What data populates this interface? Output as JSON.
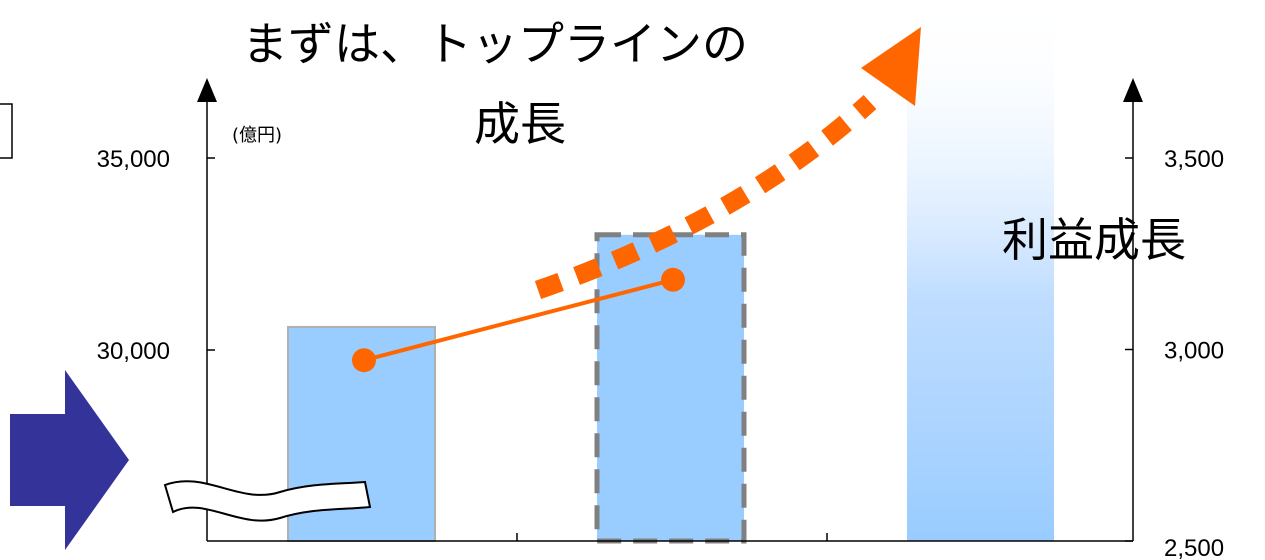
{
  "chart_data": {
    "type": "bar",
    "categories": [
      "",
      "",
      ""
    ],
    "bars": [
      30600,
      33000,
      37500
    ],
    "bar_styles": [
      "solid",
      "dashed-outline",
      "gradient-fade"
    ],
    "line_series": {
      "axis": "right",
      "values": [
        2972,
        3182
      ]
    },
    "left_axis": {
      "unit_label": "(億円)",
      "ticks": [
        {
          "value": 30000,
          "label": "30,000"
        },
        {
          "value": 35000,
          "label": "35,000"
        }
      ],
      "range": [
        25000,
        35000
      ]
    },
    "right_axis": {
      "ticks": [
        {
          "value": 2500,
          "label": "2,500"
        },
        {
          "value": 3000,
          "label": "3,000"
        },
        {
          "value": 3500,
          "label": "3,500"
        }
      ],
      "range": [
        2500,
        3500
      ]
    },
    "annotations": {
      "headline_line1": "まずは、トップラインの",
      "headline_line2": "成長",
      "profit_growth": "利益成長"
    },
    "axis_break": true
  },
  "colors": {
    "bar_fill": "#99CCFF",
    "bar_border": "#B0B0B0",
    "dashed_outline": "#808080",
    "line": "#FF6600",
    "dotted_arrow": "#FF6600",
    "block_arrow": "#333399",
    "axis": "#000000"
  },
  "icons": {
    "left_arrow": "right-block-arrow-icon",
    "axis_break": "axis-break-ribbon-icon",
    "growth_arrow": "dotted-growth-arrow-icon"
  }
}
